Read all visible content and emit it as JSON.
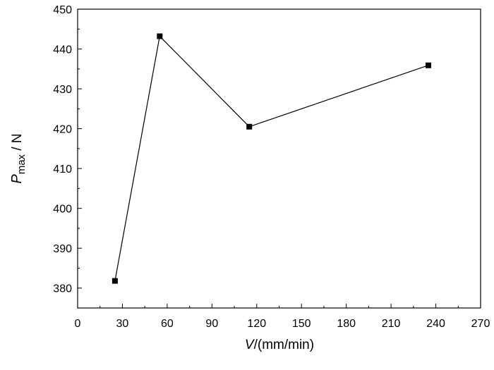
{
  "chart_data": {
    "type": "line",
    "xlabel_var": "V",
    "xlabel_unit": "/(mm/min)",
    "ylabel_var": "P",
    "ylabel_sub": "max",
    "ylabel_unit": " / N",
    "xlim": [
      0,
      270
    ],
    "ylim": [
      375,
      450
    ],
    "xticks": [
      0,
      30,
      60,
      90,
      120,
      150,
      180,
      210,
      240,
      270
    ],
    "yticks": [
      380,
      390,
      400,
      410,
      420,
      430,
      440,
      450
    ],
    "x": [
      25,
      55,
      115,
      235
    ],
    "y": [
      381.8,
      443.2,
      420.5,
      435.9
    ],
    "grid": false,
    "marker": "square",
    "color": "#000000"
  }
}
